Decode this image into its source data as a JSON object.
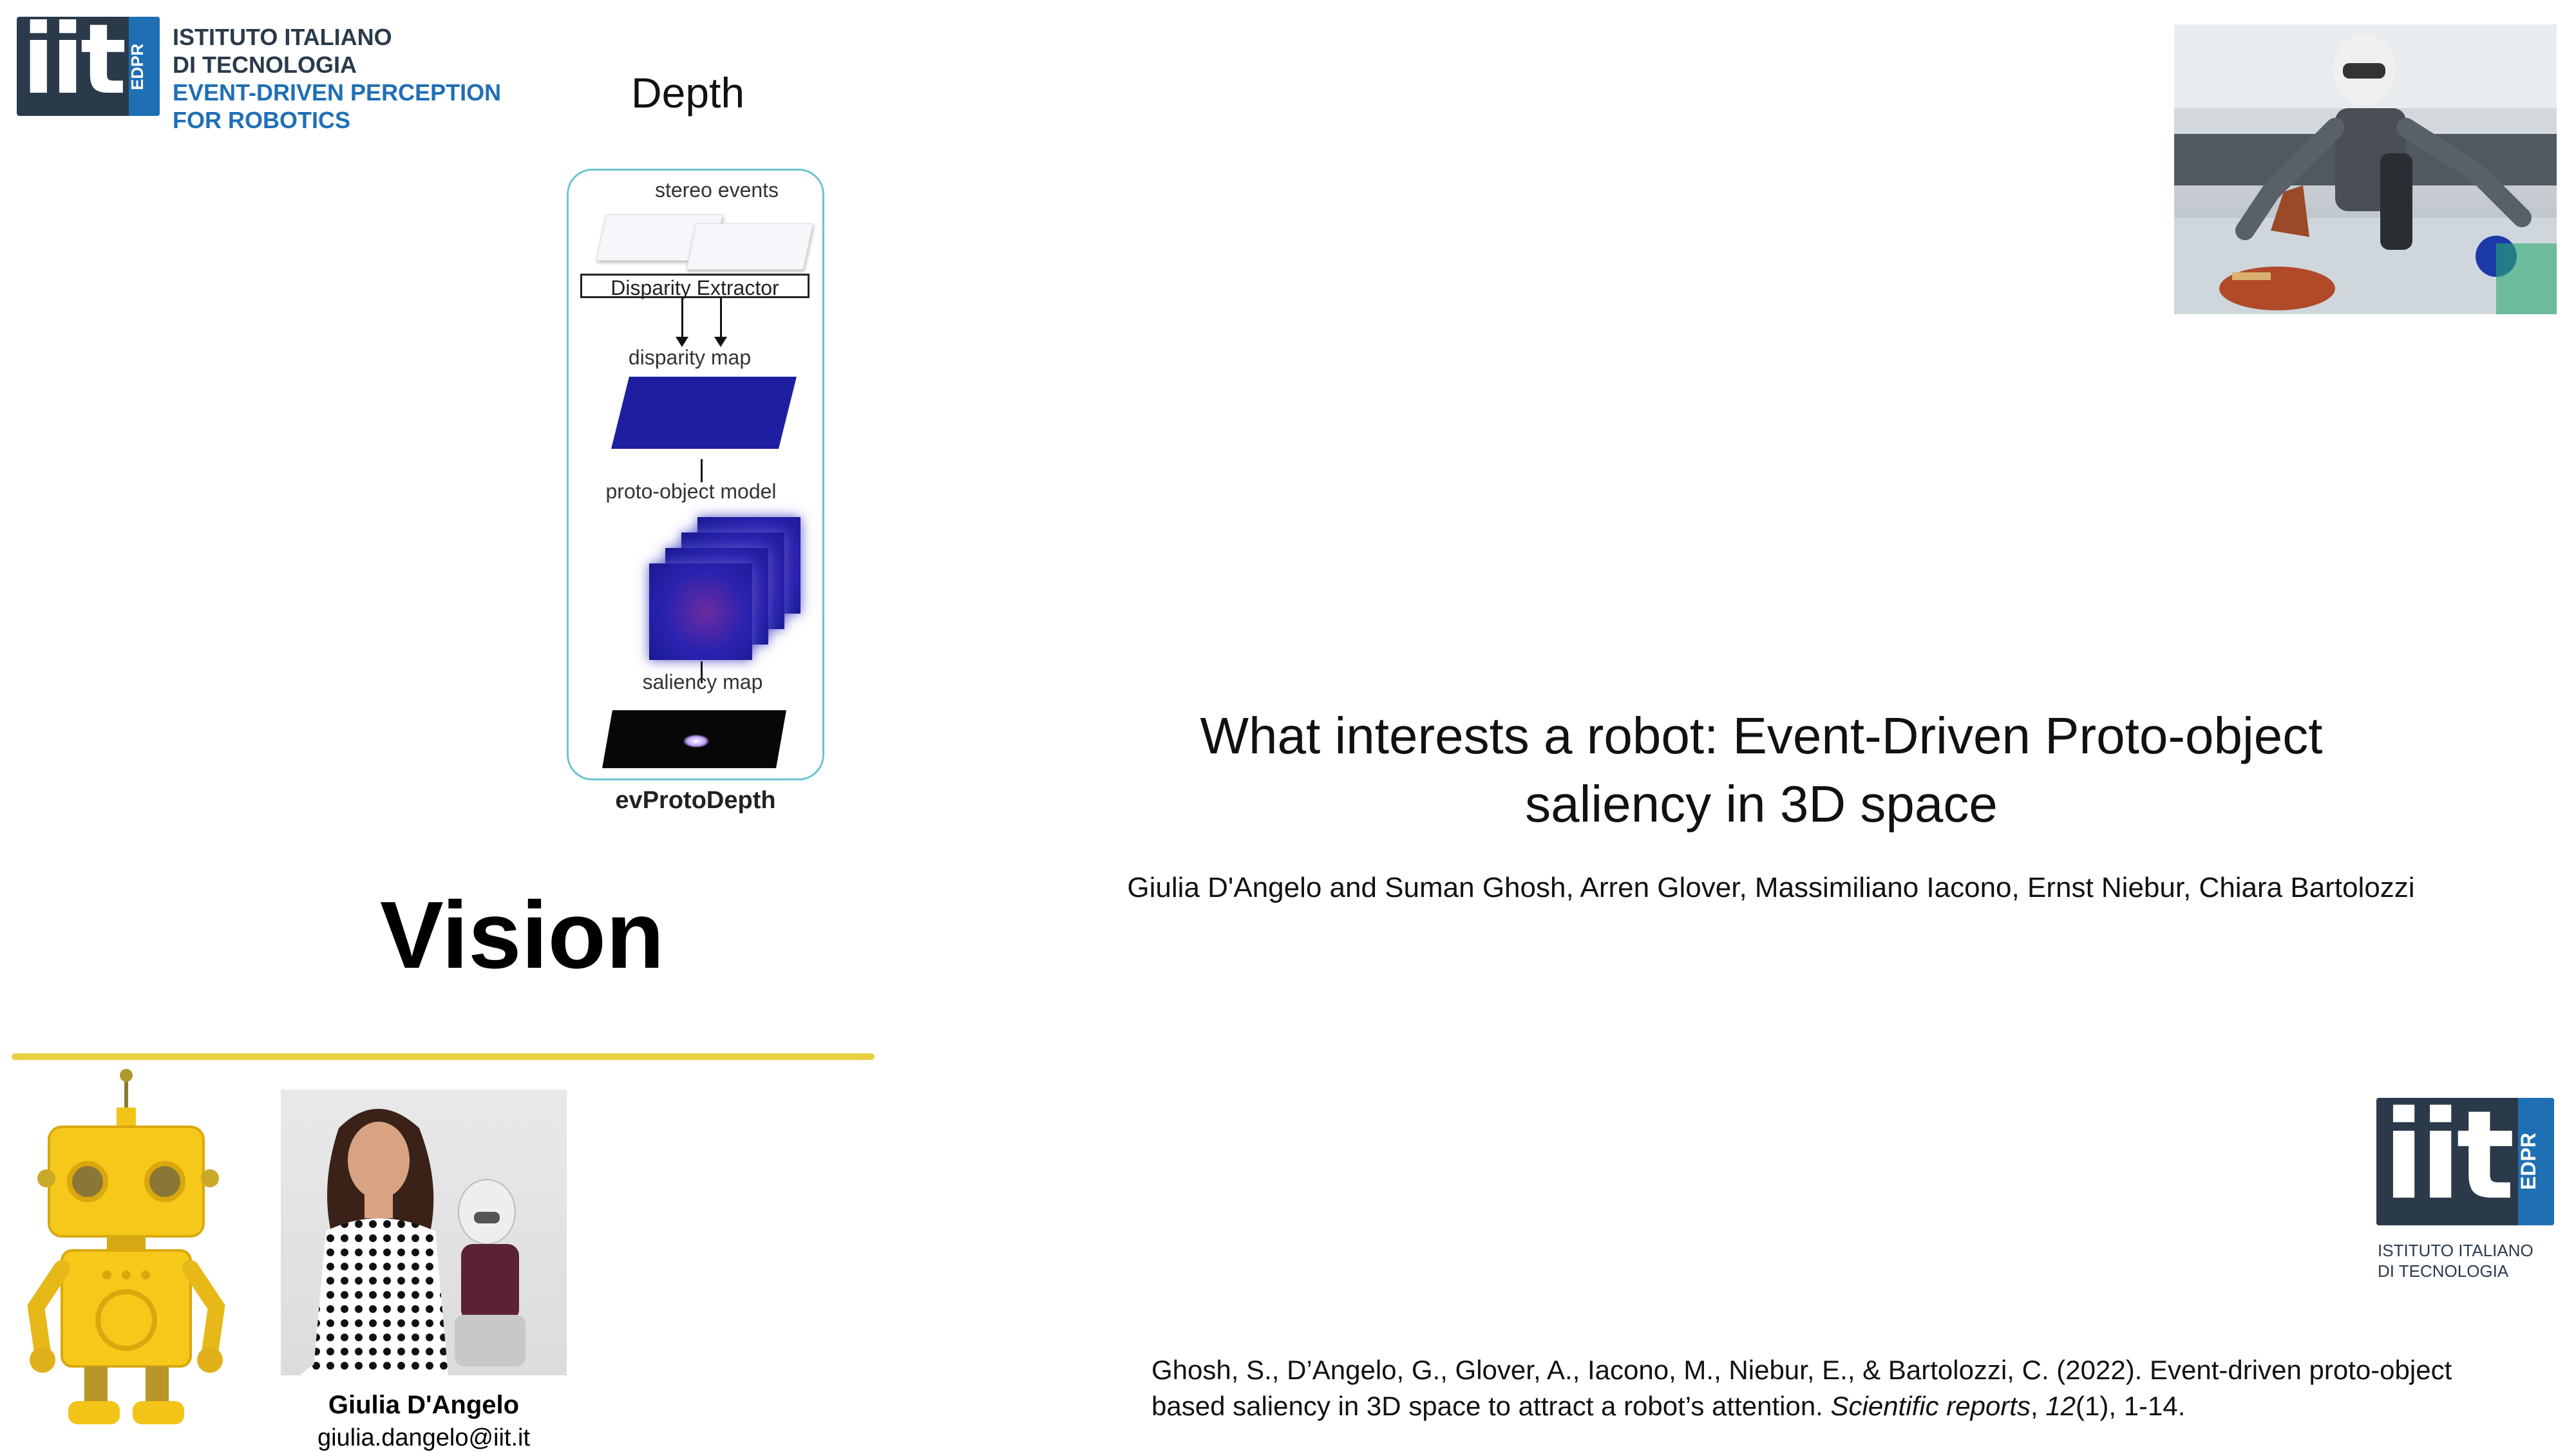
{
  "logo": {
    "mark": "iit",
    "tag": "EDPR",
    "line1": "ISTITUTO ITALIANO",
    "line2": "DI TECNOLOGIA",
    "line3": "EVENT-DRIVEN PERCEPTION",
    "line4": "FOR ROBOTICS",
    "colors": {
      "dark": "#2b3a4a",
      "blue": "#1f6fb5"
    }
  },
  "depth_title": "Depth",
  "diagram": {
    "stereo_events": "stereo events",
    "disparity_extractor": "Disparity Extractor",
    "disparity_map": "disparity map",
    "proto_object_model": "proto-object model",
    "saliency_map": "saliency map",
    "caption": "evProtoDepth",
    "border_color": "#6cc3d2"
  },
  "vision_title": "Vision",
  "accent_line_color": "#e8cf3c",
  "person": {
    "name": "Giulia D'Angelo",
    "email": "giulia.dangelo@iit.it"
  },
  "paper": {
    "title_line1": "What interests a robot: Event-Driven Proto-object",
    "title_line2": "saliency in 3D space",
    "authors": "Giulia D'Angelo and Suman Ghosh, Arren Glover, Massimiliano Iacono, Ernst Niebur, Chiara Bartolozzi"
  },
  "logo2": {
    "mark": "iit",
    "tag": "EDPR",
    "line1": "ISTITUTO ITALIANO",
    "line2": "DI TECNOLOGIA"
  },
  "citation": {
    "text": "Ghosh, S., D’Angelo, G., Glover, A., Iacono, M., Niebur, E., & Bartolozzi, C. (2022). Event-driven proto-object based saliency in 3D space to attract a robot’s attention. ",
    "journal": "Scientific reports",
    "sep1": ", ",
    "volume": "12",
    "rest": "(1), 1-14."
  }
}
